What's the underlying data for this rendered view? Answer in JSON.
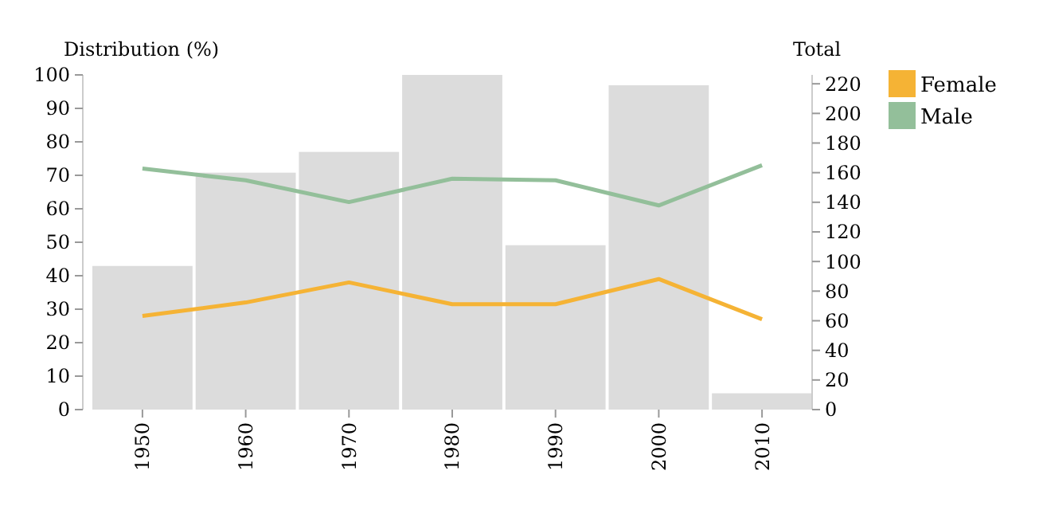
{
  "chart_data": {
    "type": "line",
    "ylabel": "Distribution (%)",
    "y2label": "Total",
    "categories": [
      "1950",
      "1960",
      "1970",
      "1980",
      "1990",
      "2000",
      "2010"
    ],
    "series": [
      {
        "type": "bar",
        "axis": "y2",
        "color": "#dcdcdc",
        "values": [
          97,
          160,
          174,
          226,
          111,
          219,
          11
        ]
      },
      {
        "name": "Female",
        "color": "#f5b335",
        "values": [
          28,
          32,
          38,
          31.5,
          31.5,
          39,
          27
        ]
      },
      {
        "name": "Male",
        "color": "#93bf9a",
        "values": [
          72,
          68.5,
          62,
          69,
          68.5,
          61,
          73
        ]
      }
    ],
    "ylim": [
      0,
      100
    ],
    "yticks": [
      0,
      10,
      20,
      30,
      40,
      50,
      60,
      70,
      80,
      90,
      100
    ],
    "y2lim": [
      0,
      226
    ],
    "y2ticks": [
      0,
      20,
      40,
      60,
      80,
      100,
      120,
      140,
      160,
      180,
      200,
      220
    ],
    "grid": false,
    "legend": "top right"
  }
}
